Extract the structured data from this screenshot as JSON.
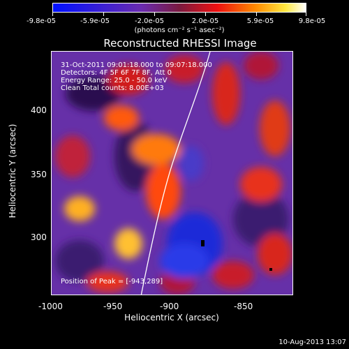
{
  "colorbar": {
    "labels": [
      "-9.8e-05",
      "-5.9e-05",
      "-2.0e-05",
      "2.0e-05",
      "5.9e-05",
      "9.8e-05"
    ],
    "units": "(photons cm⁻² s⁻¹ asec⁻²)",
    "colors": {
      "low": "#0a18ff",
      "mid": "#5a2a8a",
      "high": "#ffffff"
    }
  },
  "title": "Reconstructed RHESSI Image",
  "info": {
    "time_range": "31-Oct-2011 09:01:18.000 to 09:07:18.000",
    "detectors": "Detectors: 4F 5F 6F 7F 8F, Att 0",
    "energy": "Energy Range: 25.0 - 50.0 keV",
    "clean": "Clean      Total counts: 8.00E+03",
    "peak": "Position of Peak = [-943,289]"
  },
  "axes": {
    "xlabel": "Heliocentric X (arcsec)",
    "ylabel": "Heliocentric Y (arcsec)",
    "xticks": [
      "-1000",
      "-950",
      "-900",
      "-850"
    ],
    "yticks": [
      "400",
      "350",
      "300"
    ]
  },
  "timestamp": "10-Aug-2013 13:07"
}
